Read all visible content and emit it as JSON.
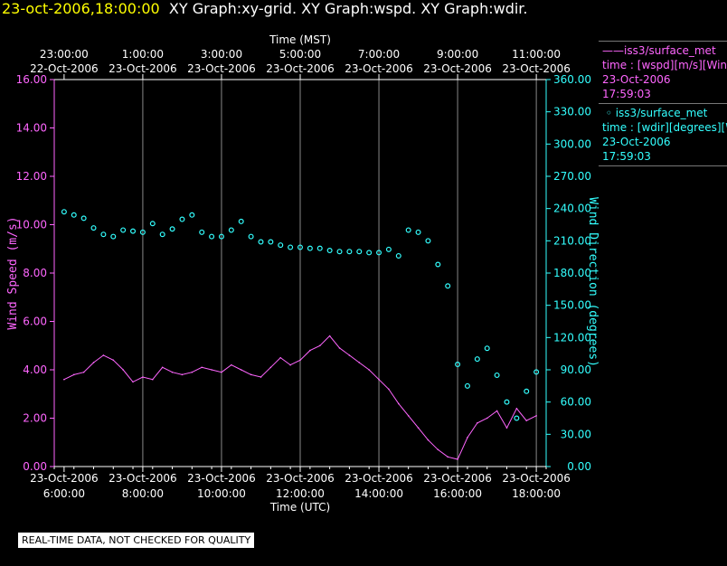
{
  "header": {
    "timestamp": "23-oct-2006,18:00:00",
    "graphs": "XY Graph:xy-grid.  XY Graph:wspd.  XY Graph:wdir."
  },
  "legend": {
    "series1": {
      "name": "iss3/surface_met",
      "line1": "time : [wspd][m/s][Wind Speed]",
      "date": "23-Oct-2006",
      "time": "17:59:03"
    },
    "series2": {
      "name": "iss3/surface_met",
      "line1": "time : [wdir][degrees][Wind Direction]",
      "date": "23-Oct-2006",
      "time": "17:59:03"
    }
  },
  "notice": "REAL-TIME DATA, NOT CHECKED FOR QUALITY",
  "colors": {
    "background": "#000000",
    "speed": "#ff66ff",
    "direction": "#33ffff",
    "grid": "#888888",
    "title_stamp": "#ffff00"
  },
  "chart_data": {
    "type": "line",
    "top_axis": {
      "label": "Time (MST)",
      "ticks": [
        {
          "time": "23:00:00",
          "date": "22-Oct-2006"
        },
        {
          "time": "1:00:00",
          "date": "23-Oct-2006"
        },
        {
          "time": "3:00:00",
          "date": "23-Oct-2006"
        },
        {
          "time": "5:00:00",
          "date": "23-Oct-2006"
        },
        {
          "time": "7:00:00",
          "date": "23-Oct-2006"
        },
        {
          "time": "9:00:00",
          "date": "23-Oct-2006"
        },
        {
          "time": "11:00:00",
          "date": "23-Oct-2006"
        }
      ]
    },
    "bottom_axis": {
      "label": "Time (UTC)",
      "ticks": [
        {
          "date": "23-Oct-2006",
          "time": "6:00:00"
        },
        {
          "date": "23-Oct-2006",
          "time": "8:00:00"
        },
        {
          "date": "23-Oct-2006",
          "time": "10:00:00"
        },
        {
          "date": "23-Oct-2006",
          "time": "12:00:00"
        },
        {
          "date": "23-Oct-2006",
          "time": "14:00:00"
        },
        {
          "date": "23-Oct-2006",
          "time": "16:00:00"
        },
        {
          "date": "23-Oct-2006",
          "time": "18:00:00"
        }
      ]
    },
    "xlim_hours_utc": [
      5.75,
      18.25
    ],
    "left_axis": {
      "label": "Wind Speed (m/s)",
      "range": [
        0,
        16
      ],
      "tick_labels": [
        "0.00",
        "2.00",
        "4.00",
        "6.00",
        "8.00",
        "10.00",
        "12.00",
        "14.00",
        "16.00"
      ]
    },
    "right_axis": {
      "label": "Wind Direction (degrees)",
      "range": [
        0,
        360
      ],
      "tick_labels": [
        "0.00",
        "30.00",
        "60.00",
        "90.00",
        "120.00",
        "150.00",
        "180.00",
        "210.00",
        "240.00",
        "270.00",
        "300.00",
        "330.00",
        "360.00"
      ]
    },
    "series": [
      {
        "name": "Wind Speed",
        "axis": "left",
        "style": "line",
        "x": [
          6.0,
          6.25,
          6.5,
          6.75,
          7.0,
          7.25,
          7.5,
          7.75,
          8.0,
          8.25,
          8.5,
          8.75,
          9.0,
          9.25,
          9.5,
          9.75,
          10.0,
          10.25,
          10.5,
          10.75,
          11.0,
          11.25,
          11.5,
          11.75,
          12.0,
          12.25,
          12.5,
          12.75,
          13.0,
          13.25,
          13.5,
          13.75,
          14.0,
          14.25,
          14.5,
          14.75,
          15.0,
          15.25,
          15.5,
          15.75,
          16.0,
          16.25,
          16.5,
          16.75,
          17.0,
          17.25,
          17.5,
          17.75,
          18.0
        ],
        "values": [
          3.6,
          3.8,
          3.9,
          4.3,
          4.6,
          4.4,
          4.0,
          3.5,
          3.7,
          3.6,
          4.1,
          3.9,
          3.8,
          3.9,
          4.1,
          4.0,
          3.9,
          4.2,
          4.0,
          3.8,
          3.7,
          4.1,
          4.5,
          4.2,
          4.4,
          4.8,
          5.0,
          5.4,
          4.9,
          4.6,
          4.3,
          4.0,
          3.6,
          3.2,
          2.6,
          2.1,
          1.6,
          1.1,
          0.7,
          0.4,
          0.3,
          1.2,
          1.8,
          2.0,
          2.3,
          1.6,
          2.4,
          1.9,
          2.1
        ]
      },
      {
        "name": "Wind Direction",
        "axis": "right",
        "style": "markers",
        "x": [
          6.0,
          6.25,
          6.5,
          6.75,
          7.0,
          7.25,
          7.5,
          7.75,
          8.0,
          8.25,
          8.5,
          8.75,
          9.0,
          9.25,
          9.5,
          9.75,
          10.0,
          10.25,
          10.5,
          10.75,
          11.0,
          11.25,
          11.5,
          11.75,
          12.0,
          12.25,
          12.5,
          12.75,
          13.0,
          13.25,
          13.5,
          13.75,
          14.0,
          14.25,
          14.5,
          14.75,
          15.0,
          15.25,
          15.5,
          15.75,
          16.0,
          16.25,
          16.5,
          16.75,
          17.0,
          17.25,
          17.5,
          17.75,
          18.0
        ],
        "values": [
          237,
          234,
          231,
          222,
          216,
          214,
          220,
          219,
          218,
          226,
          216,
          221,
          230,
          234,
          218,
          214,
          214,
          220,
          228,
          214,
          209,
          209,
          206,
          204,
          204,
          203,
          203,
          201,
          200,
          200,
          200,
          199,
          199,
          202,
          196,
          220,
          218,
          210,
          188,
          168,
          95,
          75,
          100,
          110,
          85,
          60,
          45,
          70,
          88
        ]
      }
    ]
  }
}
